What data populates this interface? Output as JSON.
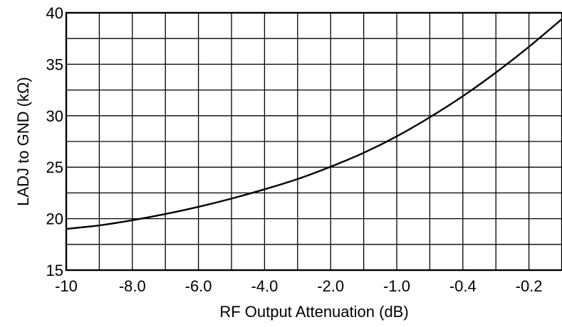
{
  "chart_data": {
    "type": "line",
    "title": "",
    "xlabel": "RF Output Attenuation (dB)",
    "ylabel": "LADJ to GND (kΩ)",
    "x_tick_labels": [
      "-10",
      "-8.0",
      "-6.0",
      "-4.0",
      "-2.0",
      "-1.0",
      "-0.4",
      "-0.2"
    ],
    "y_tick_labels": [
      "15",
      "20",
      "25",
      "30",
      "35",
      "40"
    ],
    "ylim": [
      15,
      40
    ],
    "x_grid_divisions": 15,
    "y_minor_step": 2.5,
    "grid": true,
    "legend": "none",
    "line_color": "#000000",
    "grid_color": "#000000",
    "series": [
      {
        "x_grid_position": [
          0,
          1,
          2,
          3,
          4,
          5,
          6,
          7,
          8,
          9,
          10,
          11,
          12,
          13,
          14,
          15
        ],
        "y": [
          19.0,
          19.35,
          19.85,
          20.45,
          21.15,
          21.95,
          22.85,
          23.85,
          25.05,
          26.4,
          28.0,
          29.85,
          31.9,
          34.2,
          36.7,
          39.4
        ]
      }
    ]
  }
}
